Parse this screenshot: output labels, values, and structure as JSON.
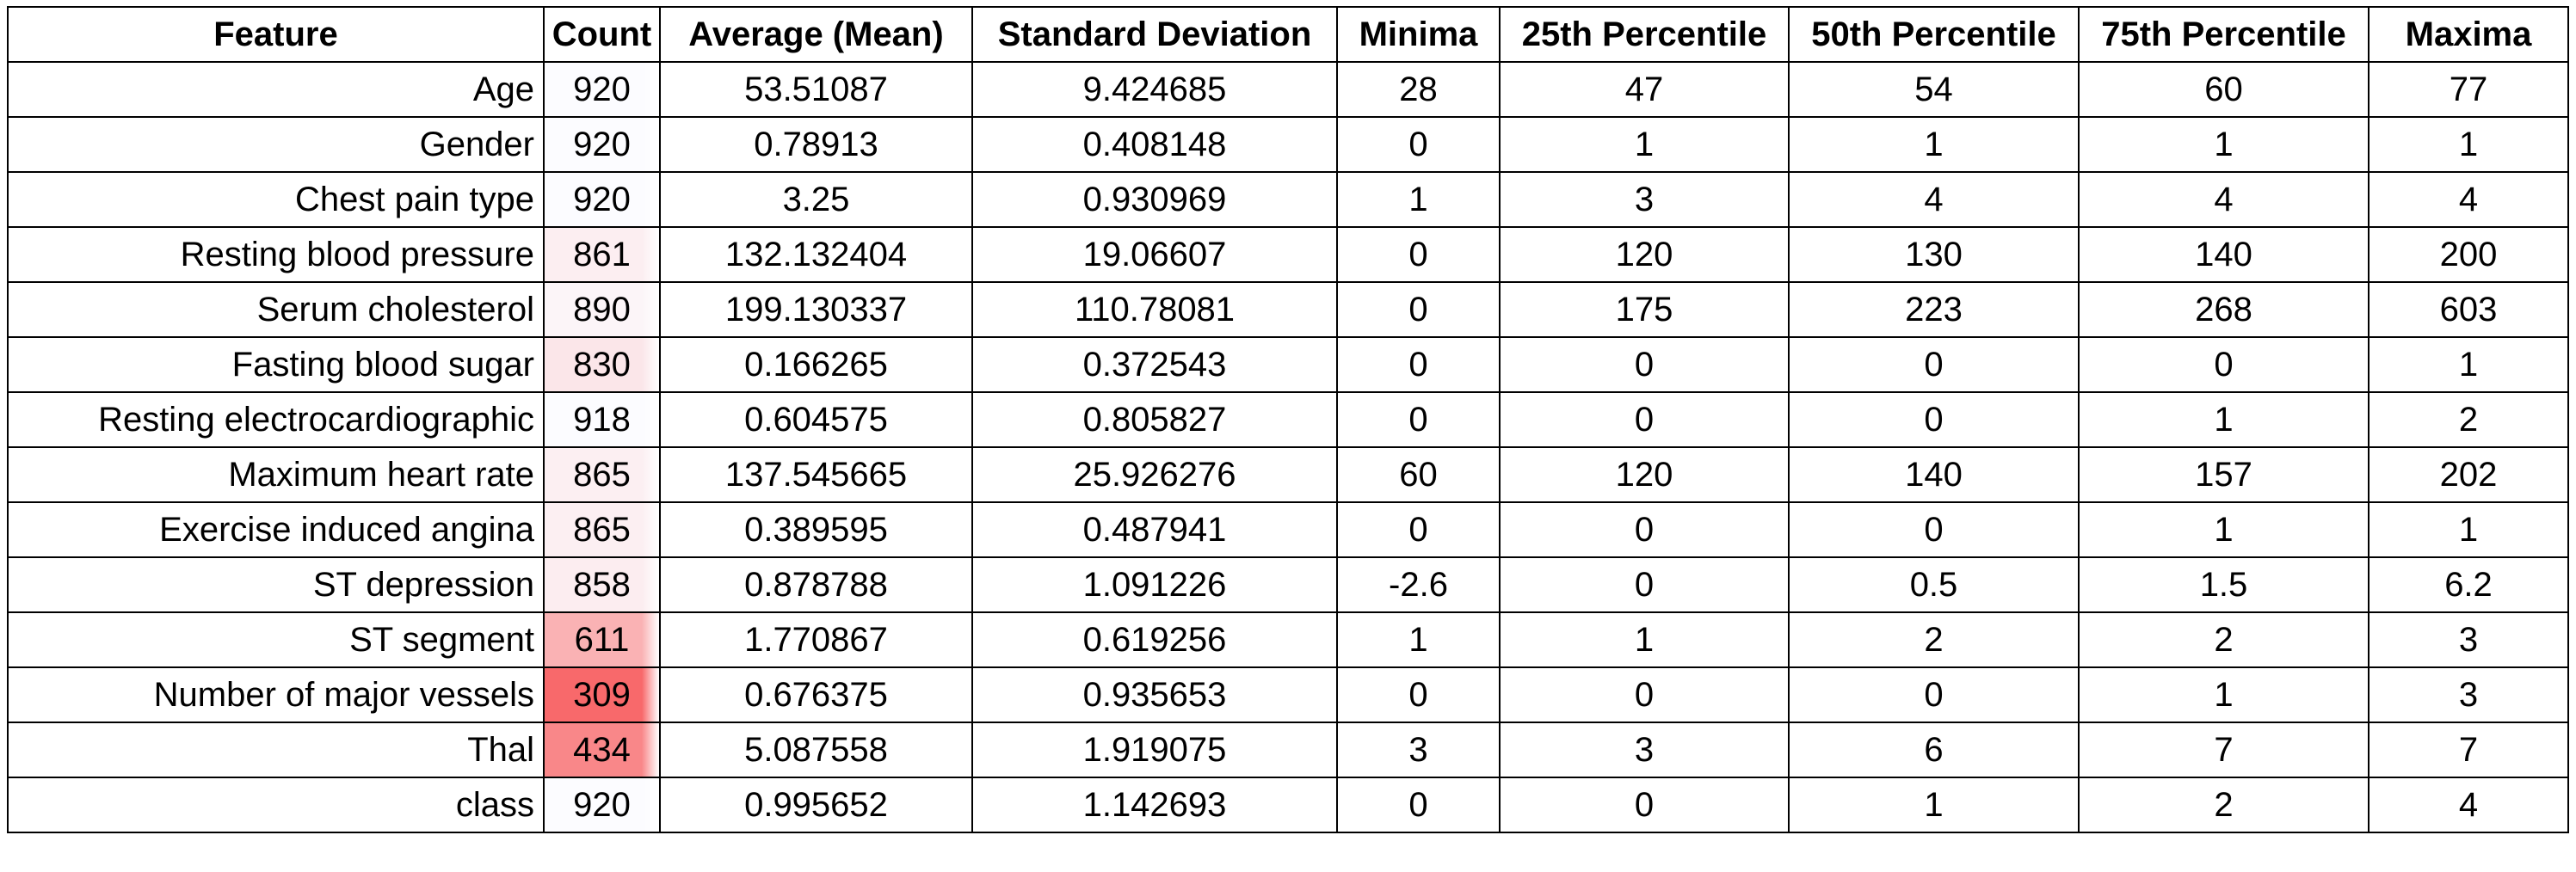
{
  "table": {
    "columns": [
      "Feature",
      "Count",
      "Average (Mean)",
      "Standard Deviation",
      "Minima",
      "25th Percentile",
      "50th Percentile",
      "75th Percentile",
      "Maxima"
    ],
    "rows": [
      [
        "Age",
        "920",
        "53.51087",
        "9.424685",
        "28",
        "47",
        "54",
        "60",
        "77"
      ],
      [
        "Gender",
        "920",
        "0.78913",
        "0.408148",
        "0",
        "1",
        "1",
        "1",
        "1"
      ],
      [
        "Chest pain type",
        "920",
        "3.25",
        "0.930969",
        "1",
        "3",
        "4",
        "4",
        "4"
      ],
      [
        "Resting blood pressure",
        "861",
        "132.132404",
        "19.06607",
        "0",
        "120",
        "130",
        "140",
        "200"
      ],
      [
        "Serum cholesterol",
        "890",
        "199.130337",
        "110.78081",
        "0",
        "175",
        "223",
        "268",
        "603"
      ],
      [
        "Fasting blood sugar",
        "830",
        "0.166265",
        "0.372543",
        "0",
        "0",
        "0",
        "0",
        "1"
      ],
      [
        "Resting electrocardiographic",
        "918",
        "0.604575",
        "0.805827",
        "0",
        "0",
        "0",
        "1",
        "2"
      ],
      [
        "Maximum heart rate",
        "865",
        "137.545665",
        "25.926276",
        "60",
        "120",
        "140",
        "157",
        "202"
      ],
      [
        "Exercise induced angina",
        "865",
        "0.389595",
        "0.487941",
        "0",
        "0",
        "0",
        "1",
        "1"
      ],
      [
        "ST depression",
        "858",
        "0.878788",
        "1.091226",
        "-2.6",
        "0",
        "0.5",
        "1.5",
        "6.2"
      ],
      [
        "ST segment",
        "611",
        "1.770867",
        "0.619256",
        "1",
        "1",
        "2",
        "2",
        "3"
      ],
      [
        "Number of major vessels",
        "309",
        "0.676375",
        "0.935653",
        "0",
        "0",
        "0",
        "1",
        "3"
      ],
      [
        "Thal",
        "434",
        "5.087558",
        "1.919075",
        "3",
        "3",
        "6",
        "7",
        "7"
      ],
      [
        "class",
        "920",
        "0.995652",
        "1.142693",
        "0",
        "0",
        "1",
        "2",
        "4"
      ]
    ]
  },
  "count_heatmap": {
    "low_color": "#f8696b",
    "high_color": "#fcfcff",
    "min": 309,
    "max": 920
  }
}
